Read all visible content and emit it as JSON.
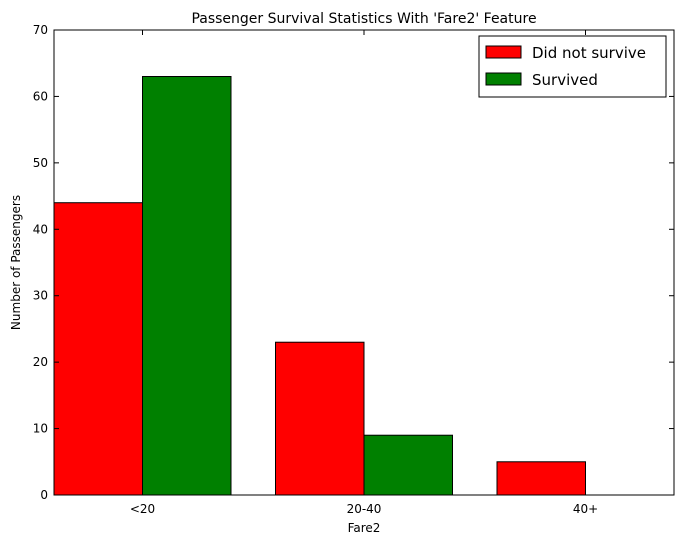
{
  "chart_data": {
    "type": "bar",
    "title": "Passenger Survival Statistics With 'Fare2' Feature",
    "xlabel": "Fare2",
    "ylabel": "Number of Passengers",
    "categories": [
      "<20",
      "20-40",
      "40+"
    ],
    "series": [
      {
        "name": "Did not survive",
        "values": [
          44,
          23,
          5
        ],
        "color": "#ff0000"
      },
      {
        "name": "Survived",
        "values": [
          63,
          9,
          0
        ],
        "color": "#008000"
      }
    ],
    "ylim": [
      0,
      70
    ],
    "yticks": [
      0,
      10,
      20,
      30,
      40,
      50,
      60,
      70
    ],
    "grid": false,
    "legend_position": "top-right"
  }
}
